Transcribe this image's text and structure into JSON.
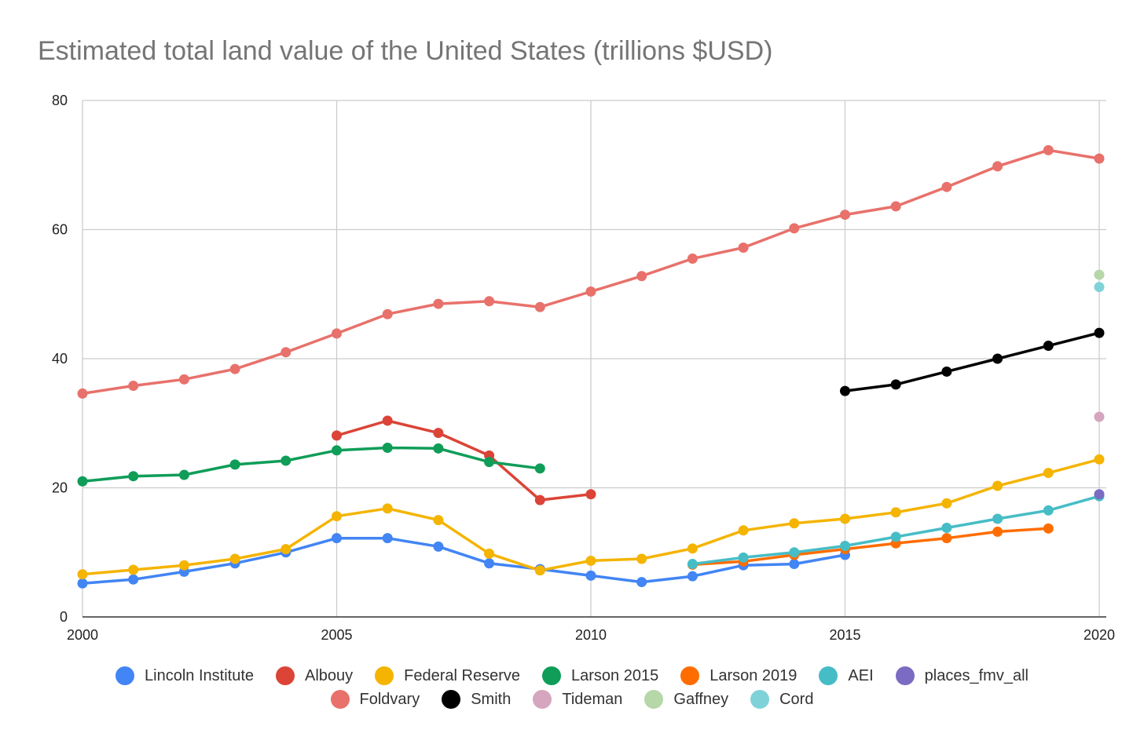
{
  "chart_data": {
    "type": "line",
    "title": "Estimated total land value of the United States (trillions $USD)",
    "xlabel": "",
    "ylabel": "",
    "xlim": [
      2000,
      2020
    ],
    "ylim": [
      0,
      80
    ],
    "x_ticks": [
      "2000",
      "2005",
      "2010",
      "2015",
      "2020"
    ],
    "y_ticks": [
      "0",
      "20",
      "40",
      "60",
      "80"
    ],
    "grid": true,
    "legend_position": "bottom",
    "series": [
      {
        "name": "Lincoln Institute",
        "color": "#4285F4",
        "x": [
          2000,
          2001,
          2002,
          2003,
          2004,
          2005,
          2006,
          2007,
          2008,
          2009,
          2010,
          2011,
          2012,
          2013,
          2014,
          2015
        ],
        "values": [
          5.2,
          5.8,
          7.0,
          8.3,
          10.0,
          12.2,
          12.2,
          10.9,
          8.3,
          7.4,
          6.4,
          5.4,
          6.3,
          8.0,
          8.2,
          9.6
        ]
      },
      {
        "name": "Albouy",
        "color": "#DB4437",
        "x": [
          2005,
          2006,
          2007,
          2008,
          2009,
          2010
        ],
        "values": [
          28.1,
          30.4,
          28.5,
          25.0,
          18.1,
          19.0
        ]
      },
      {
        "name": "Federal Reserve",
        "color": "#F4B400",
        "x": [
          2000,
          2001,
          2002,
          2003,
          2004,
          2005,
          2006,
          2007,
          2008,
          2009,
          2010,
          2011,
          2012,
          2013,
          2014,
          2015,
          2016,
          2017,
          2018,
          2019,
          2020
        ],
        "values": [
          6.6,
          7.3,
          8.0,
          9.0,
          10.5,
          15.6,
          16.8,
          15.0,
          9.8,
          7.2,
          8.7,
          9.0,
          10.6,
          13.4,
          14.5,
          15.2,
          16.2,
          17.6,
          20.3,
          22.3,
          24.4
        ]
      },
      {
        "name": "Larson 2015",
        "color": "#0F9D58",
        "x": [
          2000,
          2001,
          2002,
          2003,
          2004,
          2005,
          2006,
          2007,
          2008,
          2009
        ],
        "values": [
          21.0,
          21.8,
          22.0,
          23.6,
          24.2,
          25.8,
          26.2,
          26.1,
          24.0,
          23.0
        ]
      },
      {
        "name": "Larson 2019",
        "color": "#FF6D01",
        "x": [
          2012,
          2013,
          2014,
          2015,
          2016,
          2017,
          2018,
          2019
        ],
        "values": [
          8.1,
          8.6,
          9.6,
          10.5,
          11.4,
          12.2,
          13.2,
          13.7
        ]
      },
      {
        "name": "AEI",
        "color": "#46BDC6",
        "x": [
          2012,
          2013,
          2014,
          2015,
          2016,
          2017,
          2018,
          2019,
          2020
        ],
        "values": [
          8.2,
          9.2,
          10.0,
          11.0,
          12.4,
          13.8,
          15.2,
          16.5,
          18.7
        ]
      },
      {
        "name": "places_fmv_all",
        "color": "#7B6BC3",
        "x": [
          2020
        ],
        "values": [
          19.0
        ]
      },
      {
        "name": "Foldvary",
        "color": "#E8716B",
        "x": [
          2000,
          2001,
          2002,
          2003,
          2004,
          2005,
          2006,
          2007,
          2008,
          2009,
          2010,
          2011,
          2012,
          2013,
          2014,
          2015,
          2016,
          2017,
          2018,
          2019,
          2020
        ],
        "values": [
          34.6,
          35.8,
          36.8,
          38.4,
          41.0,
          43.9,
          46.9,
          48.5,
          48.9,
          48.0,
          50.4,
          52.8,
          55.5,
          57.2,
          60.2,
          62.3,
          63.6,
          66.6,
          69.8,
          72.3,
          71.0
        ]
      },
      {
        "name": "Smith",
        "color": "#000000",
        "x": [
          2015,
          2016,
          2017,
          2018,
          2019,
          2020
        ],
        "values": [
          35.0,
          36.0,
          38.0,
          40.0,
          42.0,
          44.0
        ]
      },
      {
        "name": "Tideman",
        "color": "#D5A6BD",
        "x": [
          2020
        ],
        "values": [
          31.0
        ]
      },
      {
        "name": "Gaffney",
        "color": "#B6D7A8",
        "x": [
          2020
        ],
        "values": [
          53.0
        ]
      },
      {
        "name": "Cord",
        "color": "#7FD3D8",
        "x": [
          2020
        ],
        "values": [
          51.1
        ]
      }
    ]
  }
}
